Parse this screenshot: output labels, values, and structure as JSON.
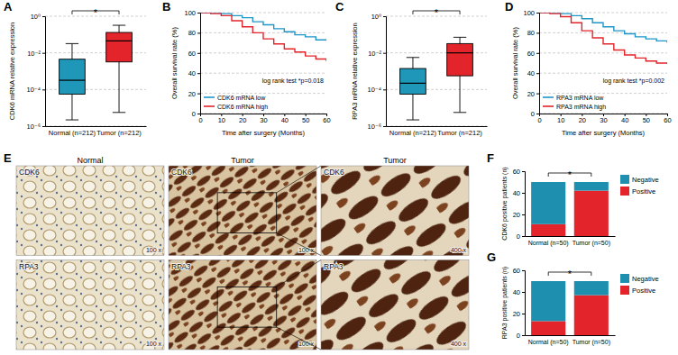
{
  "chart_data": [
    {
      "type": "box",
      "title": "A",
      "categories": [
        "Normal (n=212)",
        "Tumor (n=212)"
      ],
      "values": [
        {
          "min": 2.2e-06,
          "q1": 5.6e-05,
          "median": 0.00032,
          "q3": 0.0045,
          "max": 0.032
        },
        {
          "min": 5.6e-06,
          "q1": 0.0032,
          "median": 0.045,
          "q3": 0.13,
          "max": 0.32
        }
      ],
      "colors": [
        "#1f97b8",
        "#e3242b"
      ],
      "ylabel": "CDK6 mRNA relative expression",
      "log": "y",
      "ylim": [
        1e-06,
        1
      ],
      "yticks": [
        {
          "value": 1e-06,
          "label": "10⁻⁶"
        },
        {
          "value": 0.0001,
          "label": "10⁻⁴"
        },
        {
          "value": 0.01,
          "label": "10⁻²"
        },
        {
          "value": 1,
          "label": "10⁰"
        }
      ],
      "grid": true,
      "annotations": [
        "*"
      ]
    },
    {
      "type": "line",
      "title": "B",
      "x": [
        0,
        5,
        10,
        15,
        20,
        25,
        30,
        35,
        40,
        45,
        50,
        55,
        60
      ],
      "series": [
        {
          "name": "CDK6 mRNA low",
          "color": "#1f97c8",
          "values": [
            100,
            100,
            99,
            97,
            95,
            91,
            88,
            84,
            81,
            78,
            76,
            73,
            72
          ]
        },
        {
          "name": "CDK6 mRNA high",
          "color": "#e3242b",
          "values": [
            100,
            99,
            97,
            92,
            86,
            80,
            74,
            69,
            64,
            61,
            57,
            54,
            52
          ]
        }
      ],
      "xlabel": "Time after surgery (Months)",
      "ylabel": "Overall survival rate (%)",
      "xlim": [
        0,
        60
      ],
      "xticks": [
        0,
        10,
        20,
        30,
        40,
        50,
        60
      ],
      "ylim": [
        0,
        100
      ],
      "yticks": [
        0,
        20,
        40,
        60,
        80,
        100
      ],
      "grid": true,
      "legend": "lower left",
      "line_style": "step",
      "annotations": [
        "log rank test *p=0.018"
      ]
    },
    {
      "type": "box",
      "title": "C",
      "categories": [
        "Normal (n=212)",
        "Tumor (n=212)"
      ],
      "values": [
        {
          "min": 2.2e-06,
          "q1": 5.6e-05,
          "median": 0.00022,
          "q3": 0.0014,
          "max": 0.0056
        },
        {
          "min": 5.6e-06,
          "q1": 0.00056,
          "median": 0.01,
          "q3": 0.032,
          "max": 0.071
        }
      ],
      "colors": [
        "#1f97b8",
        "#e3242b"
      ],
      "ylabel": "RPA3 mRNA relative expression",
      "log": "y",
      "ylim": [
        1e-06,
        1
      ],
      "yticks": [
        {
          "value": 1e-06,
          "label": "10⁻⁶"
        },
        {
          "value": 0.0001,
          "label": "10⁻⁴"
        },
        {
          "value": 0.01,
          "label": "10⁻²"
        },
        {
          "value": 1,
          "label": "10⁰"
        }
      ],
      "grid": true,
      "annotations": [
        "*"
      ]
    },
    {
      "type": "line",
      "title": "D",
      "x": [
        0,
        5,
        10,
        15,
        20,
        25,
        30,
        35,
        40,
        45,
        50,
        55,
        60
      ],
      "series": [
        {
          "name": "RPA3 mRNA low",
          "color": "#1f97c8",
          "values": [
            100,
            100,
            99,
            97,
            94,
            90,
            86,
            82,
            79,
            76,
            74,
            72,
            70
          ]
        },
        {
          "name": "RPA3 mRNA high",
          "color": "#e3242b",
          "values": [
            100,
            99,
            96,
            90,
            82,
            75,
            69,
            63,
            58,
            55,
            52,
            50,
            49
          ]
        }
      ],
      "xlabel": "Time after surgery (Months)",
      "ylabel": "Overall survival rate (%)",
      "xlim": [
        0,
        60
      ],
      "xticks": [
        0,
        10,
        20,
        30,
        40,
        50,
        60
      ],
      "ylim": [
        0,
        100
      ],
      "yticks": [
        0,
        20,
        40,
        60,
        80,
        100
      ],
      "grid": true,
      "legend": "lower left",
      "line_style": "step",
      "annotations": [
        "log rank test *p=0.002"
      ]
    },
    {
      "type": "image_grid",
      "title": "E",
      "columns": [
        "Normal",
        "Tumor",
        "Tumor"
      ],
      "rows": [
        "CDK6",
        "RPA3"
      ],
      "magnifications": [
        [
          "100 x",
          "100 x",
          "400 x"
        ],
        [
          "100 x",
          "100 x",
          "400 x"
        ]
      ]
    },
    {
      "type": "bar",
      "title": "F",
      "stacked": true,
      "categories": [
        "Normal (n=50)",
        "Tumor (n=50)"
      ],
      "series": [
        {
          "name": "Negative",
          "color": "#1f8fb0",
          "values": [
            39,
            8
          ]
        },
        {
          "name": "Positive",
          "color": "#e3242b",
          "values": [
            11,
            42
          ]
        }
      ],
      "ylabel": "CDK6 positive patients (n)",
      "ylim": [
        0,
        60
      ],
      "yticks": [
        0,
        20,
        40,
        60
      ],
      "grid": false,
      "legend": "right",
      "annotations": [
        "*"
      ]
    },
    {
      "type": "bar",
      "title": "G",
      "stacked": true,
      "categories": [
        "Normal (n=50)",
        "Tumor (n=50)"
      ],
      "series": [
        {
          "name": "Negative",
          "color": "#1f8fb0",
          "values": [
            37,
            13
          ]
        },
        {
          "name": "Positive",
          "color": "#e3242b",
          "values": [
            13,
            37
          ]
        }
      ],
      "ylabel": "RPA3 positive patients (n)",
      "ylim": [
        0,
        60
      ],
      "yticks": [
        0,
        20,
        40,
        60
      ],
      "grid": false,
      "legend": "right",
      "annotations": [
        "*"
      ]
    }
  ]
}
